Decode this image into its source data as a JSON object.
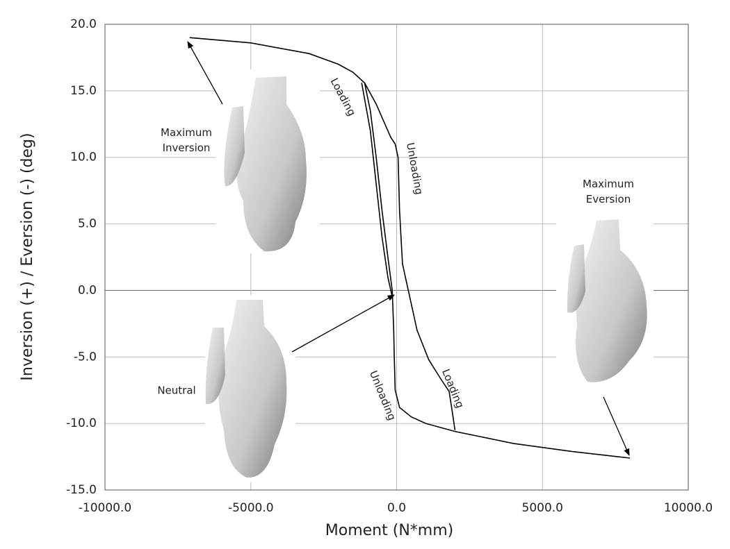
{
  "chart_data": {
    "type": "line",
    "xlabel": "Moment (N*mm)",
    "ylabel": "Inversion (+) / Eversion (-) (deg)",
    "xlim": [
      -10000,
      10000
    ],
    "ylim": [
      -15,
      20
    ],
    "xticks": [
      {
        "value": -10000,
        "label": "-10000.0"
      },
      {
        "value": -5000,
        "label": "-5000.0"
      },
      {
        "value": 0,
        "label": "0.0"
      },
      {
        "value": 5000,
        "label": "5000.0"
      },
      {
        "value": 10000,
        "label": "10000.0"
      }
    ],
    "yticks": [
      {
        "value": -15,
        "label": "-15.0"
      },
      {
        "value": -10,
        "label": "-10.0"
      },
      {
        "value": -5,
        "label": "-5.0"
      },
      {
        "value": 0,
        "label": "0.0"
      },
      {
        "value": 5,
        "label": "5.0"
      },
      {
        "value": 10,
        "label": "10.0"
      },
      {
        "value": 15,
        "label": "15.0"
      },
      {
        "value": 20,
        "label": "20.0"
      }
    ],
    "grid": true,
    "color": "#000000",
    "curves": [
      {
        "x": [
          -7100,
          -5000,
          -3000,
          -2000,
          -1500,
          -1100,
          -900,
          -700,
          -500,
          -300,
          -150,
          -100,
          -80,
          -50,
          100,
          500,
          1000,
          2000,
          4000,
          6000,
          8000
        ],
        "values": [
          19,
          18.6,
          17.8,
          17,
          16.4,
          15.6,
          13.5,
          10,
          6,
          2.5,
          0,
          -3,
          -5,
          -7.5,
          -8.8,
          -9.5,
          -10,
          -10.6,
          -11.5,
          -12.1,
          -12.6
        ]
      },
      {
        "x": [
          -1100,
          -700,
          -400,
          -200,
          -50,
          50,
          100,
          200,
          400,
          700,
          1100,
          1500,
          1800,
          1900,
          2000
        ],
        "values": [
          15.6,
          14,
          12.5,
          11.5,
          11,
          10,
          6,
          2,
          0,
          -3,
          -5.2,
          -6.6,
          -7.6,
          -9,
          -10.5
        ]
      },
      {
        "x": [
          -1200,
          -900,
          -700,
          -500,
          -300,
          -150
        ],
        "values": [
          15.6,
          12,
          8,
          4,
          1,
          -0.5
        ]
      }
    ],
    "annotations": [
      "Loading",
      "Unloading",
      "Unloading",
      "Loading",
      "Maximum Inversion",
      "Maximum Eversion",
      "Neutral"
    ]
  }
}
